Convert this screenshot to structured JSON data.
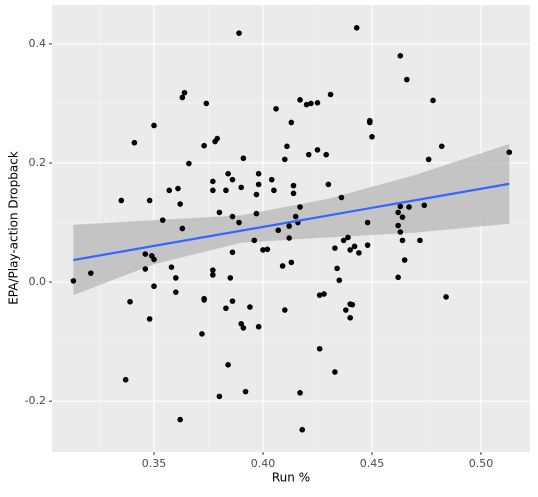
{
  "chart_data": {
    "type": "scatter",
    "x_label": "Run %",
    "y_label": "EPA/Play-action Dropback",
    "xlim": [
      0.3032,
      0.5225
    ],
    "ylim": [
      -0.2854,
      0.4653
    ],
    "xticks": [
      {
        "value": 0.35,
        "label": "0.35"
      },
      {
        "value": 0.4,
        "label": "0.40"
      },
      {
        "value": 0.45,
        "label": "0.45"
      },
      {
        "value": 0.5,
        "label": "0.50"
      }
    ],
    "yticks": [
      {
        "value": -0.2,
        "label": "-0.2"
      },
      {
        "value": 0,
        "label": "0.0"
      },
      0.2,
      0.4
    ],
    "grid": true,
    "point_color": "#000000",
    "x": [
      0.313,
      0.321,
      0.335,
      0.339,
      0.341,
      0.337,
      0.346,
      0.346,
      0.348,
      0.349,
      0.35,
      0.348,
      0.35,
      0.35,
      0.354,
      0.357,
      0.358,
      0.36,
      0.361,
      0.362,
      0.362,
      0.363,
      0.363,
      0.364,
      0.36,
      0.366,
      0.372,
      0.373,
      0.373,
      0.373,
      0.374,
      0.379,
      0.378,
      0.377,
      0.377,
      0.38,
      0.377,
      0.377,
      0.383,
      0.384,
      0.384,
      0.383,
      0.386,
      0.386,
      0.386,
      0.386,
      0.385,
      0.389,
      0.389,
      0.39,
      0.39,
      0.391,
      0.391,
      0.392,
      0.38,
      0.394,
      0.396,
      0.397,
      0.398,
      0.398,
      0.397,
      0.4,
      0.398,
      0.402,
      0.404,
      0.405,
      0.406,
      0.407,
      0.409,
      0.41,
      0.41,
      0.411,
      0.412,
      0.412,
      0.413,
      0.413,
      0.414,
      0.414,
      0.415,
      0.416,
      0.417,
      0.417,
      0.417,
      0.42,
      0.421,
      0.422,
      0.418,
      0.425,
      0.425,
      0.426,
      0.426,
      0.428,
      0.43,
      0.431,
      0.429,
      0.433,
      0.433,
      0.434,
      0.435,
      0.436,
      0.438,
      0.437,
      0.439,
      0.44,
      0.44,
      0.44,
      0.441,
      0.442,
      0.443,
      0.444,
      0.448,
      0.449,
      0.449,
      0.45,
      0.448,
      0.462,
      0.462,
      0.462,
      0.463,
      0.464,
      0.464,
      0.463,
      0.465,
      0.463,
      0.466,
      0.467,
      0.472,
      0.474,
      0.476,
      0.478,
      0.482,
      0.484,
      0.513
    ],
    "y": [
      0.002,
      0.015,
      0.137,
      -0.033,
      0.234,
      -0.164,
      0.047,
      0.022,
      -0.062,
      0.044,
      0.263,
      0.137,
      -0.007,
      0.038,
      0.104,
      0.154,
      0.025,
      -0.017,
      0.157,
      0.131,
      -0.231,
      0.09,
      0.31,
      0.318,
      0.007,
      0.199,
      -0.087,
      -0.028,
      -0.03,
      0.229,
      0.3,
      0.241,
      0.236,
      0.012,
      0.02,
      0.117,
      0.169,
      0.154,
      0.154,
      0.182,
      -0.139,
      -0.044,
      0.05,
      0.11,
      0.172,
      -0.032,
      0.007,
      0.418,
      0.1,
      0.159,
      -0.07,
      -0.077,
      0.208,
      -0.184,
      -0.192,
      -0.042,
      0.07,
      0.147,
      0.182,
      0.164,
      0.115,
      0.054,
      -0.075,
      0.055,
      0.172,
      0.154,
      0.291,
      0.087,
      0.027,
      0.206,
      -0.047,
      0.228,
      0.094,
      0.074,
      0.268,
      0.033,
      0.162,
      0.149,
      0.11,
      0.1,
      0.306,
      -0.186,
      0.126,
      0.298,
      0.214,
      0.3,
      -0.248,
      0.301,
      0.222,
      -0.022,
      -0.112,
      -0.02,
      0.164,
      0.315,
      0.214,
      0.057,
      -0.151,
      0.023,
      0.003,
      0.142,
      -0.047,
      0.07,
      0.075,
      0.054,
      -0.037,
      -0.06,
      -0.038,
      0.06,
      0.427,
      0.049,
      0.062,
      0.271,
      0.268,
      0.244,
      0.1,
      0.008,
      0.095,
      0.117,
      0.38,
      0.109,
      0.07,
      0.084,
      0.037,
      0.127,
      0.34,
      0.126,
      0.07,
      0.129,
      0.206,
      0.305,
      0.228,
      -0.025,
      0.218
    ],
    "fit": {
      "color": "#3366ff",
      "x": [
        0.313,
        0.513
      ],
      "y": [
        0.037,
        0.165
      ]
    },
    "band": {
      "color": "#bdbdbd",
      "x": [
        0.313,
        0.35,
        0.39,
        0.43,
        0.47,
        0.513
      ],
      "lower": [
        -0.022,
        0.03,
        0.066,
        0.075,
        0.083,
        0.098
      ],
      "upper": [
        0.096,
        0.104,
        0.112,
        0.14,
        0.18,
        0.232
      ]
    }
  }
}
